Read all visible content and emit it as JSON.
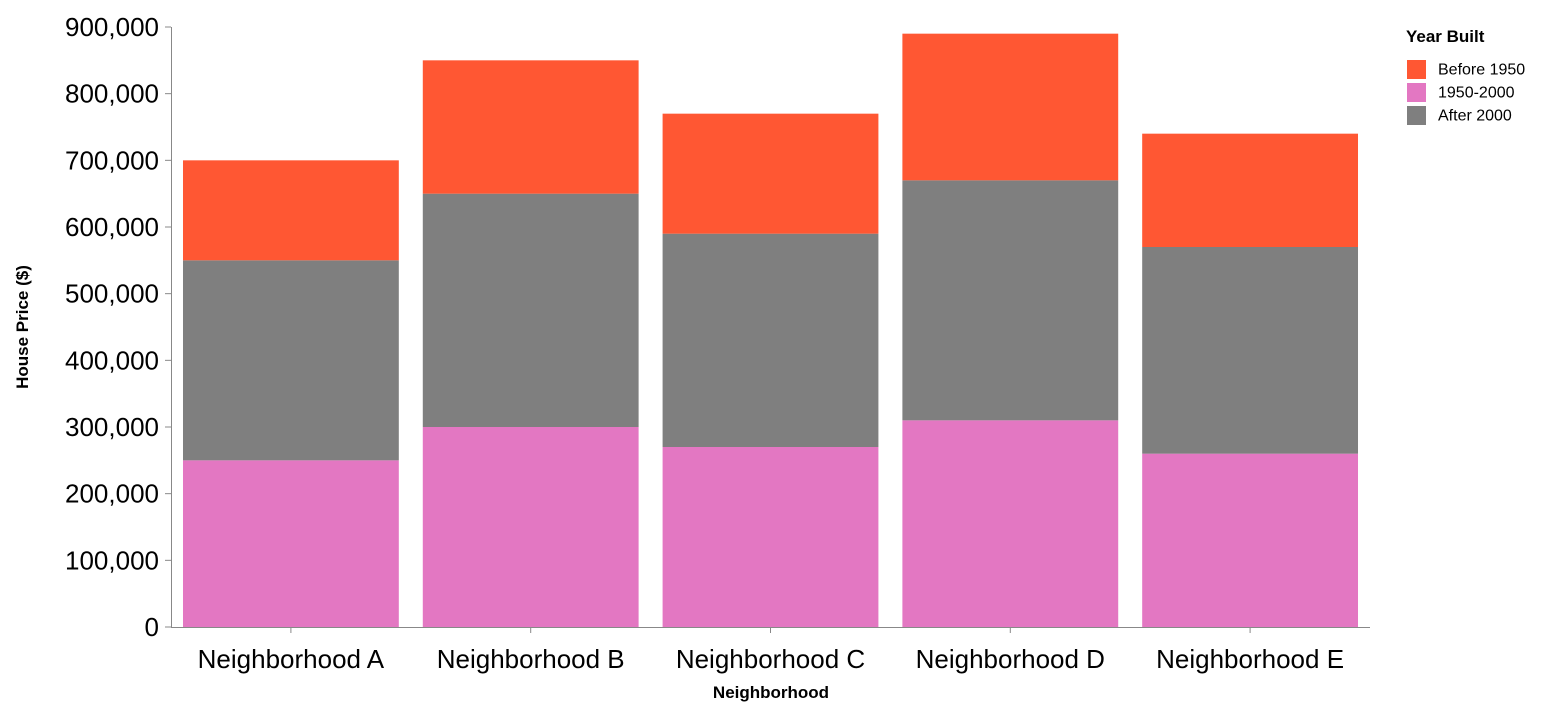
{
  "chart_data": {
    "type": "bar",
    "stacked": true,
    "categories": [
      "Neighborhood A",
      "Neighborhood B",
      "Neighborhood C",
      "Neighborhood D",
      "Neighborhood E"
    ],
    "series": [
      {
        "name": "1950-2000",
        "color": "#e377c2",
        "values": [
          250000,
          300000,
          270000,
          310000,
          260000
        ]
      },
      {
        "name": "After 2000",
        "color": "#7f7f7f",
        "values": [
          300000,
          350000,
          320000,
          360000,
          310000
        ]
      },
      {
        "name": "Before 1950",
        "color": "#ff5733",
        "values": [
          150000,
          200000,
          180000,
          220000,
          170000
        ]
      }
    ],
    "xlabel": "Neighborhood",
    "ylabel": "House Price ($)",
    "ylim": [
      0,
      900000
    ],
    "yticks": [
      0,
      100000,
      200000,
      300000,
      400000,
      500000,
      600000,
      700000,
      800000,
      900000
    ],
    "grid": false,
    "legend": {
      "title": "Year Built",
      "position": "top-right",
      "entries": [
        "Before 1950",
        "1950-2000",
        "After 2000"
      ]
    }
  }
}
